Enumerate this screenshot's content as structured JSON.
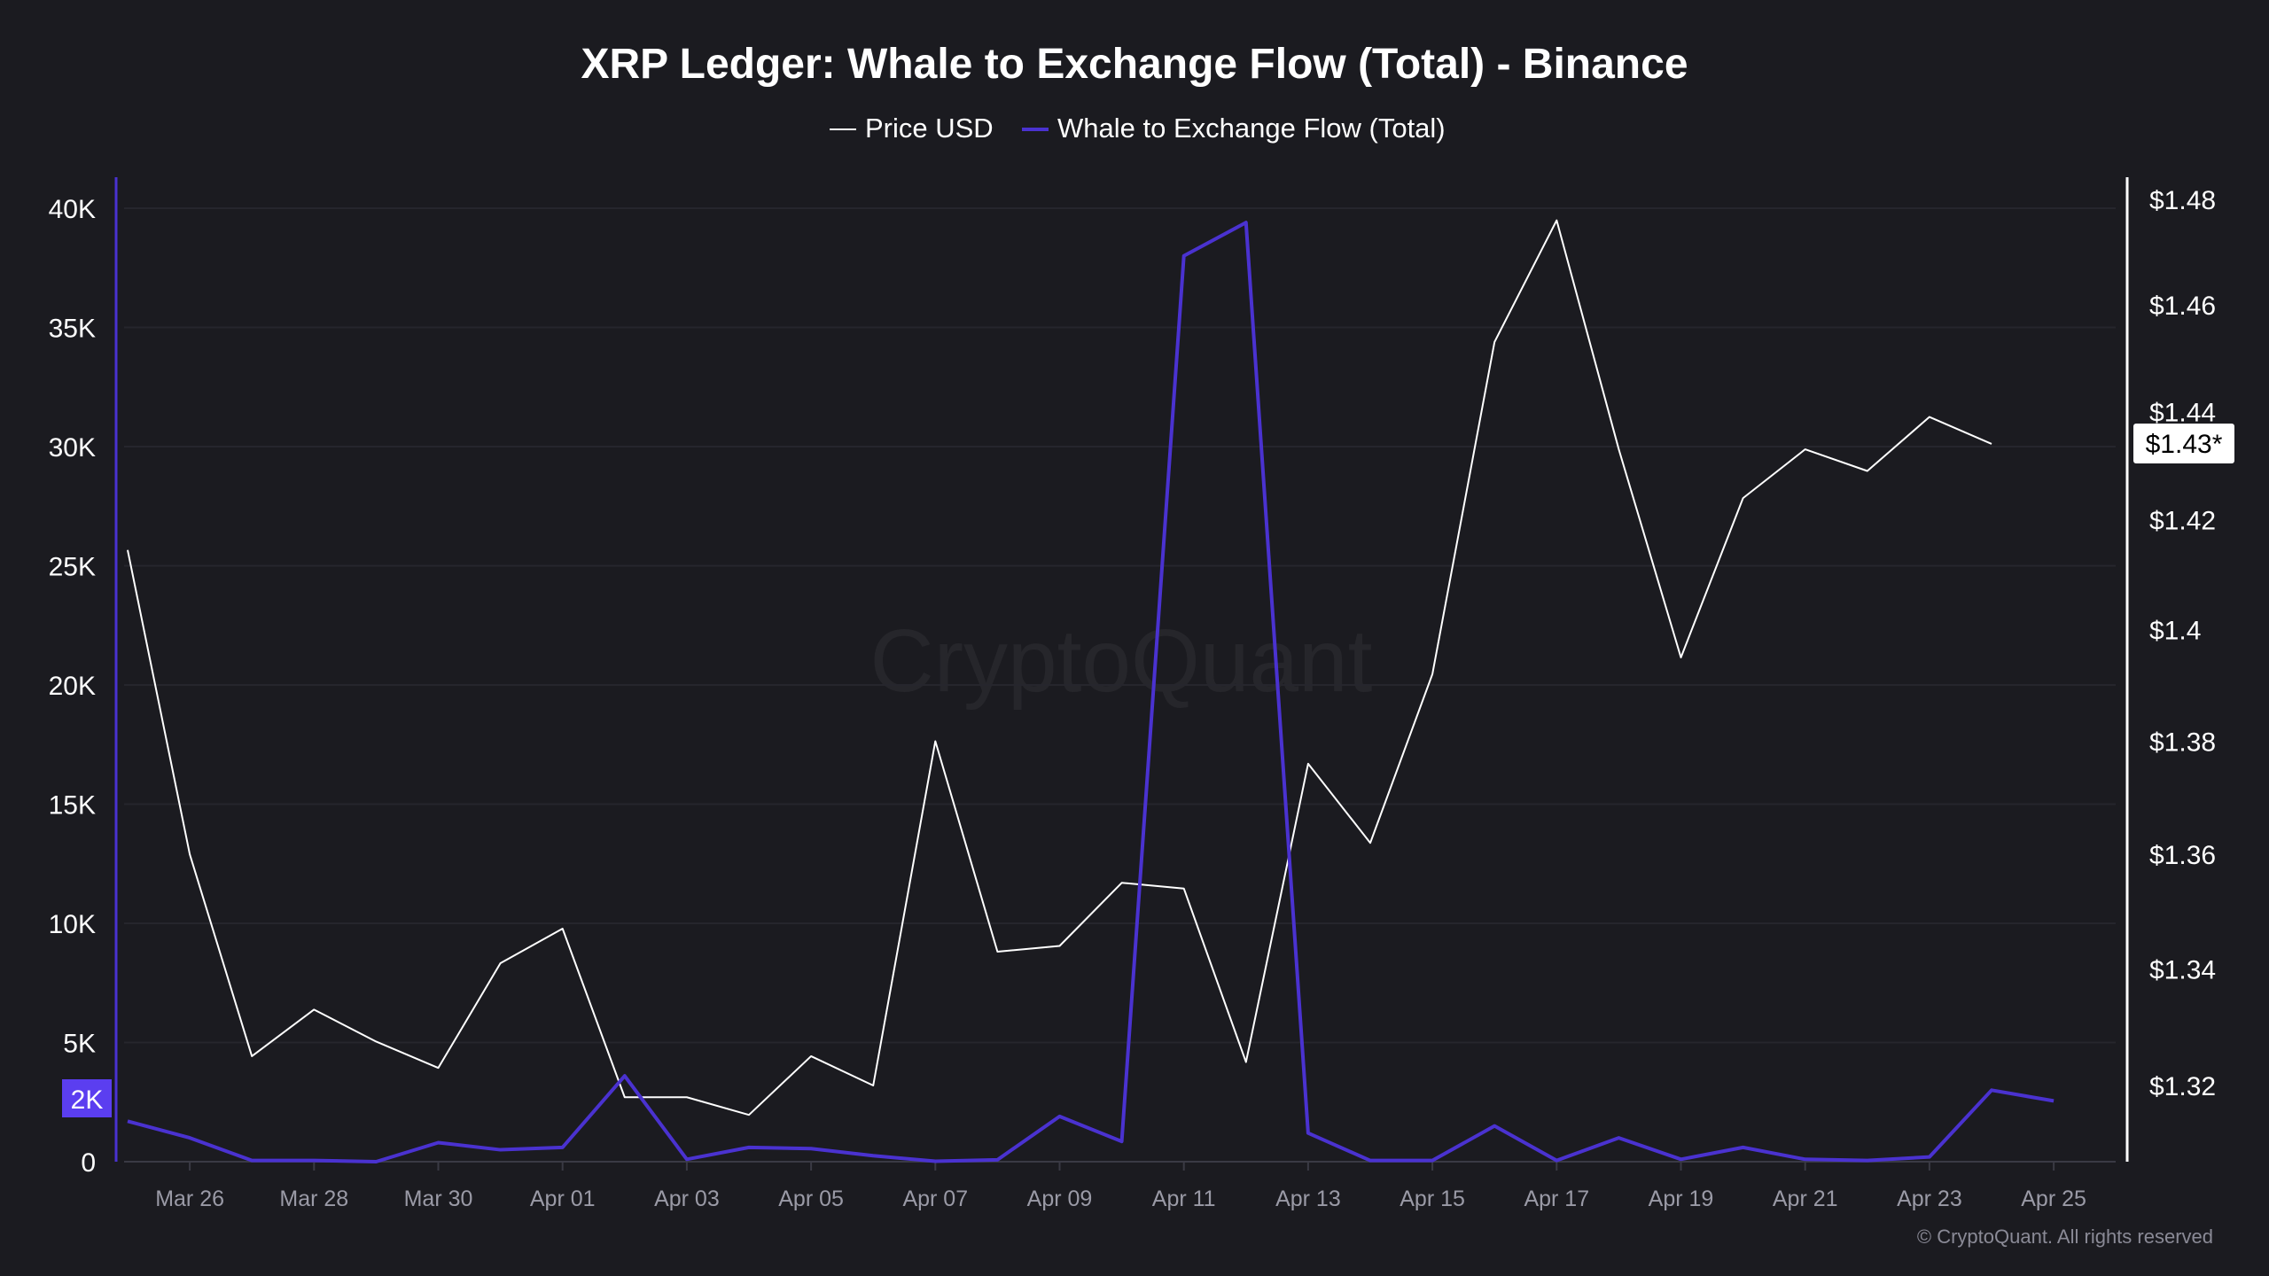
{
  "chart_data": {
    "type": "line",
    "title": "XRP Ledger: Whale to Exchange Flow (Total) - Binance",
    "legend_position": "top-center",
    "grid": true,
    "x_tick_labels": [
      "Mar 26",
      "Mar 28",
      "Mar 30",
      "Apr 01",
      "Apr 03",
      "Apr 05",
      "Apr 07",
      "Apr 09",
      "Apr 11",
      "Apr 13",
      "Apr 15",
      "Apr 17",
      "Apr 19",
      "Apr 21",
      "Apr 23",
      "Apr 25"
    ],
    "x": [
      "Mar 25",
      "Mar 26",
      "Mar 27",
      "Mar 28",
      "Mar 29",
      "Mar 30",
      "Mar 31",
      "Apr 01",
      "Apr 02",
      "Apr 03",
      "Apr 04",
      "Apr 05",
      "Apr 06",
      "Apr 07",
      "Apr 08",
      "Apr 09",
      "Apr 10",
      "Apr 11",
      "Apr 12",
      "Apr 13",
      "Apr 14",
      "Apr 15",
      "Apr 16",
      "Apr 17",
      "Apr 18",
      "Apr 19",
      "Apr 20",
      "Apr 21",
      "Apr 22",
      "Apr 23",
      "Apr 24",
      "Apr 25"
    ],
    "y_left": {
      "ylim": [
        0,
        40000
      ],
      "tick_labels": [
        "0",
        "5K",
        "10K",
        "15K",
        "20K",
        "25K",
        "30K",
        "35K",
        "40K"
      ],
      "ticks": [
        0,
        5000,
        10000,
        15000,
        20000,
        25000,
        30000,
        35000,
        40000
      ]
    },
    "y_right": {
      "scale": "log",
      "tick_labels": [
        "$1.32",
        "$1.34",
        "$1.36",
        "$1.38",
        "$1.4",
        "$1.42",
        "$1.44",
        "$1.46",
        "$1.48"
      ],
      "ticks": [
        1.32,
        1.34,
        1.36,
        1.38,
        1.4,
        1.42,
        1.44,
        1.46,
        1.48
      ]
    },
    "series": [
      {
        "name": "Price USD",
        "axis": "right",
        "color": "#ffffff",
        "values": [
          1.4145,
          1.36,
          1.325,
          1.333,
          1.3275,
          1.323,
          1.341,
          1.347,
          1.318,
          1.318,
          1.315,
          1.325,
          1.32,
          1.38,
          1.343,
          1.344,
          1.355,
          1.354,
          1.324,
          1.376,
          1.362,
          1.392,
          1.453,
          1.476,
          1.433,
          1.395,
          1.424,
          1.433,
          1.429,
          1.439,
          1.434,
          null
        ]
      },
      {
        "name": "Whale to Exchange Flow (Total)",
        "axis": "left",
        "color": "#4a32d0",
        "values": [
          1700,
          1000,
          50,
          50,
          0,
          800,
          500,
          600,
          3600,
          100,
          600,
          550,
          250,
          20,
          80,
          1900,
          850,
          38000,
          39400,
          1200,
          50,
          50,
          1500,
          50,
          1000,
          100,
          600,
          100,
          50,
          200,
          3000,
          2550
        ]
      }
    ],
    "price_marker_label": "$1.43*",
    "flow_marker_label": "2K"
  },
  "watermark": "CryptoQuant",
  "footer": "© CryptoQuant. All rights reserved"
}
